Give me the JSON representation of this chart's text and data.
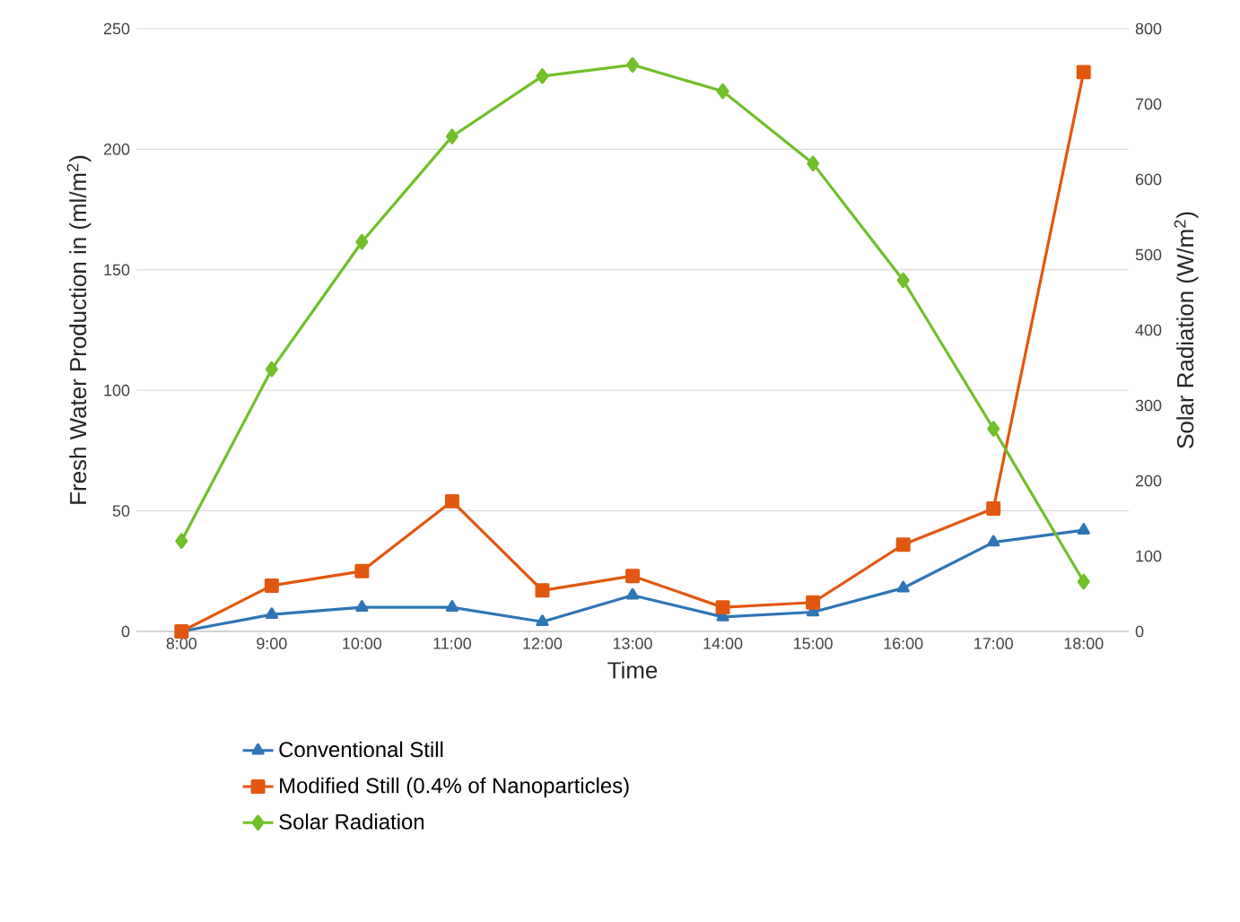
{
  "chart_data": {
    "type": "line",
    "xlabel": "Time",
    "ylabel": "Fresh Water Production in (ml/m$^{2}$)",
    "y2label": "Solar Radiation (W/m$^{2}$)",
    "categories": [
      "8:00",
      "9:00",
      "10:00",
      "11:00",
      "12:00",
      "13:00",
      "14:00",
      "15:00",
      "16:00",
      "17:00",
      "18:00"
    ],
    "ylim": [
      0,
      250
    ],
    "yticks": [
      0,
      50,
      100,
      150,
      200,
      250
    ],
    "y2lim": [
      0,
      800
    ],
    "y2ticks": [
      0,
      100,
      200,
      300,
      400,
      500,
      600,
      700,
      800
    ],
    "grid": "y",
    "legend": "bottom",
    "line_style": "solid",
    "series": [
      {
        "name": "Conventional Still",
        "color": "#2e75b6",
        "marker": "triangle",
        "values": [
          0,
          7,
          10,
          10,
          4,
          15,
          6,
          8,
          18,
          37,
          42
        ]
      },
      {
        "name": "Modified Still (0.4% of Nanoparticles)",
        "color": "#e2570f",
        "marker": "square",
        "values": [
          0,
          19,
          25,
          54,
          17,
          23,
          10,
          12,
          36,
          51,
          232
        ]
      },
      {
        "name": "Solar Radiation",
        "color": "#70bf2b",
        "marker": "diamond",
        "axis": "y2",
        "values": [
          120,
          348,
          517,
          657,
          737,
          752,
          717,
          621,
          466,
          269,
          66
        ]
      }
    ]
  }
}
